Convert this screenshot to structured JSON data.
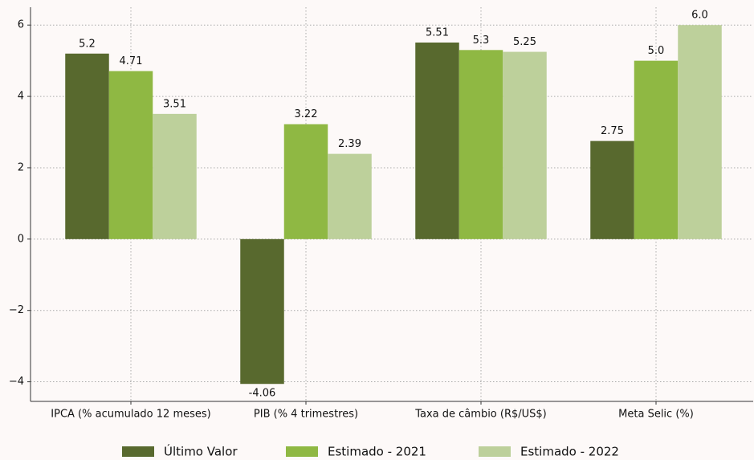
{
  "chart_data": {
    "type": "bar",
    "categories": [
      "IPCA (% acumulado 12 meses)",
      "PIB (% 4 trimestres)",
      "Taxa de câmbio (R$/US$)",
      "Meta Selic (%)"
    ],
    "series": [
      {
        "name": "Último Valor",
        "color": "#58692e",
        "values": [
          5.2,
          -4.06,
          5.51,
          2.75
        ],
        "value_labels": [
          "5.2",
          "-4.06",
          "5.51",
          "2.75"
        ]
      },
      {
        "name": "Estimado - 2021",
        "color": "#8fb843",
        "values": [
          4.71,
          3.22,
          5.3,
          5
        ],
        "value_labels": [
          "4.71",
          "3.22",
          "5.3",
          "5.0"
        ]
      },
      {
        "name": "Estimado - 2022",
        "color": "#bdd09b",
        "values": [
          3.51,
          2.39,
          5.25,
          6
        ],
        "value_labels": [
          "3.51",
          "2.39",
          "5.25",
          "6.0"
        ]
      }
    ],
    "ylim": [
      -4.55,
      6.5
    ],
    "yticks": [
      {
        "value": -4,
        "label": "−4"
      },
      {
        "value": -2,
        "label": "−2"
      },
      0,
      2,
      4,
      6
    ],
    "grid": true,
    "legend": "bottom"
  }
}
